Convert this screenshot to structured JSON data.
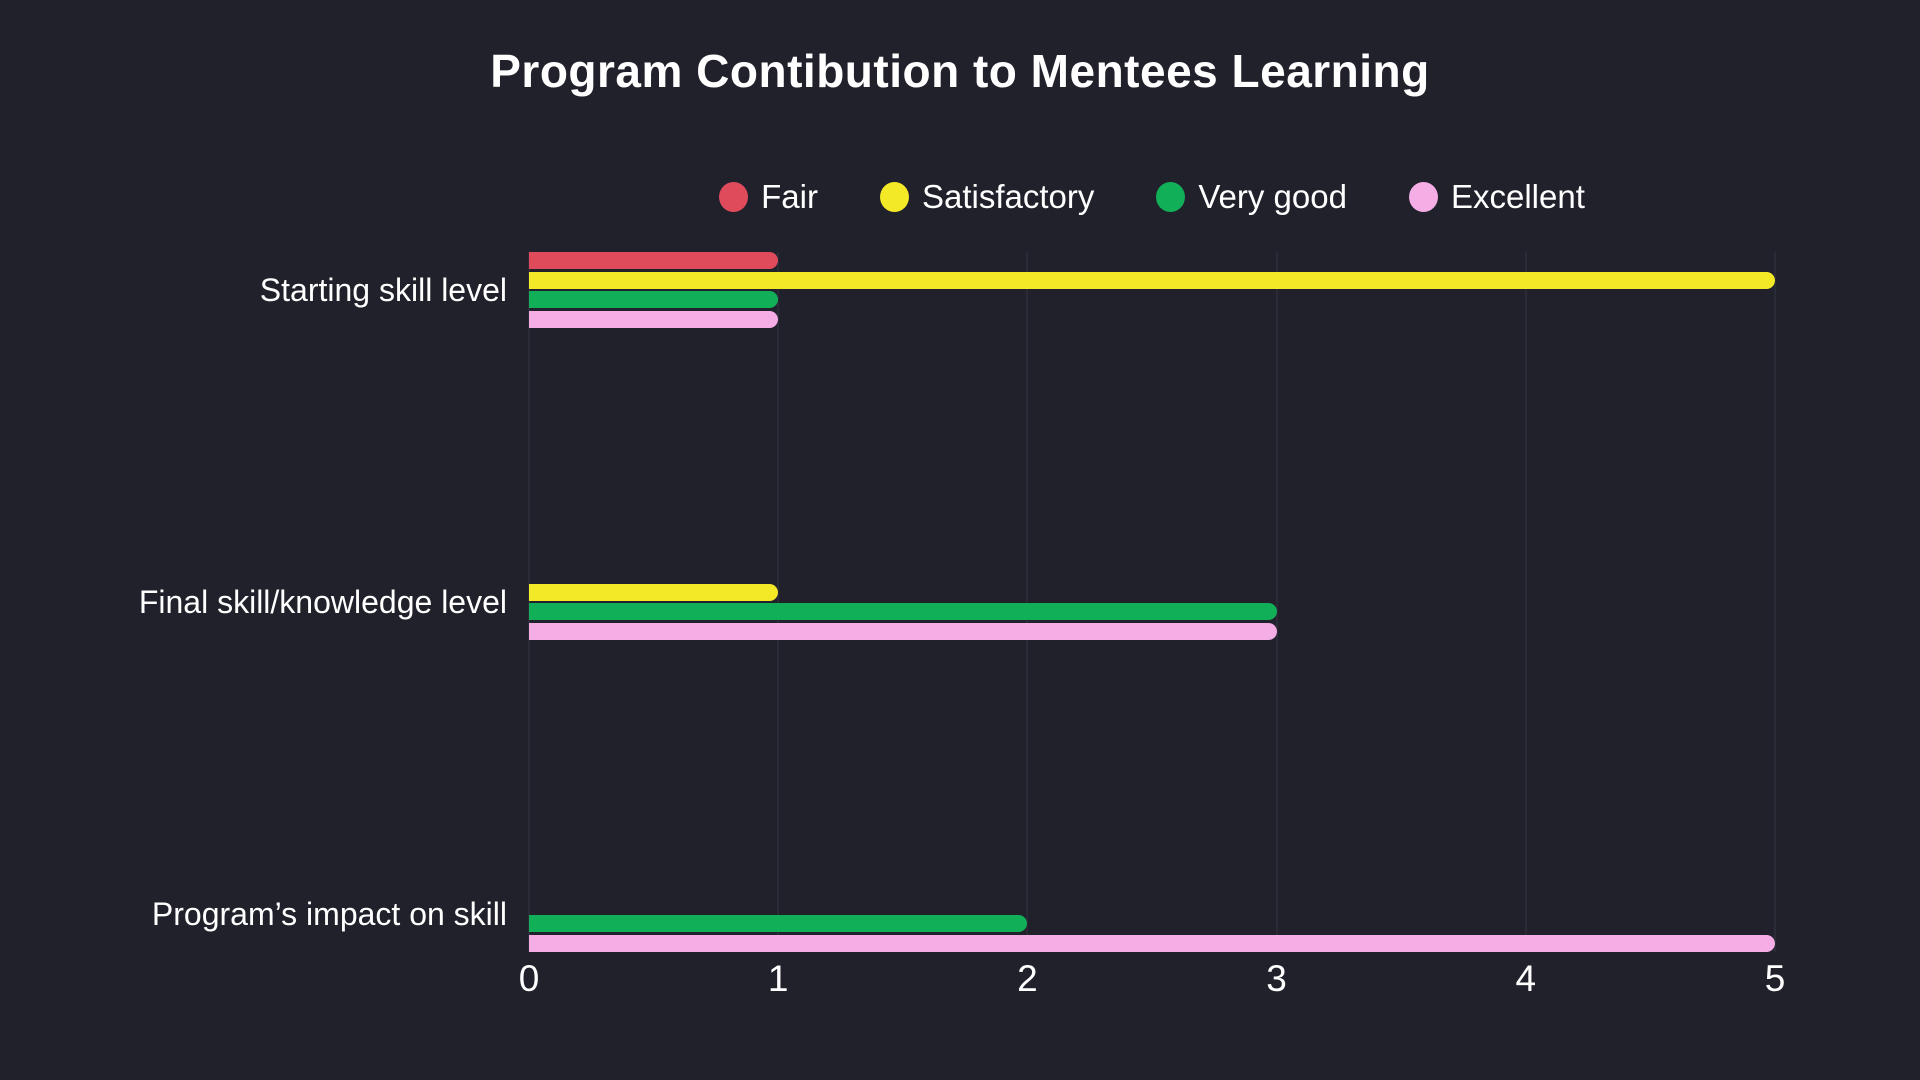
{
  "page": {
    "background": "#21212c",
    "text_color": "#ffffff",
    "grid_color": "#2b2b37"
  },
  "chart_data": {
    "type": "bar",
    "orientation": "horizontal",
    "title": "Program Contibution to Mentees Learning",
    "categories": [
      "Starting skill level",
      "Final skill/knowledge level",
      "Program’s impact on skill"
    ],
    "series": [
      {
        "name": "Fair",
        "color": "#e04b5c",
        "values": [
          1,
          0,
          0
        ]
      },
      {
        "name": "Satisfactory",
        "color": "#f4e927",
        "values": [
          5,
          1,
          0
        ]
      },
      {
        "name": "Very good",
        "color": "#10af58",
        "values": [
          1,
          3,
          2
        ]
      },
      {
        "name": "Excellent",
        "color": "#f5ade6",
        "values": [
          1,
          3,
          5
        ]
      }
    ],
    "x_ticks": [
      "0",
      "1",
      "2",
      "3",
      "4",
      "5"
    ],
    "xlim": [
      0,
      5
    ],
    "grid": true,
    "legend_position": "top"
  }
}
